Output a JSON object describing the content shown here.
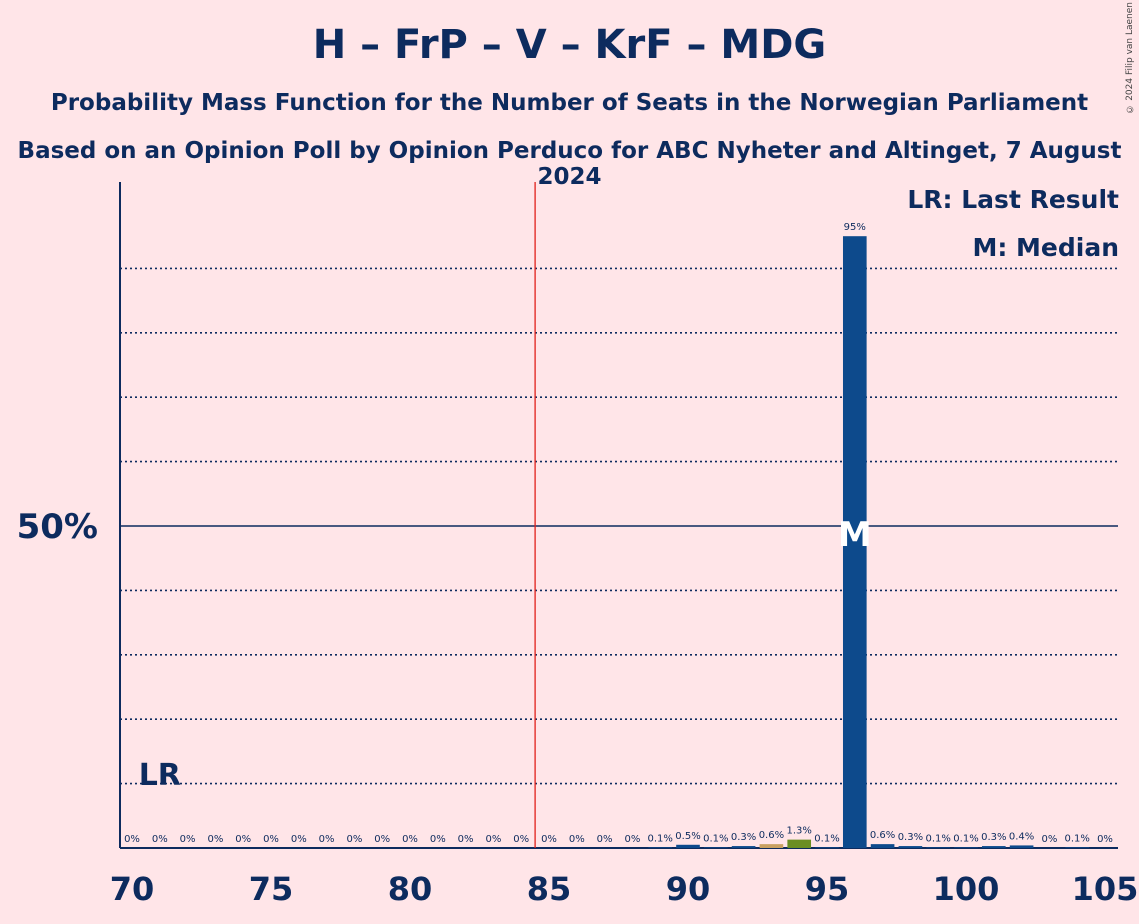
{
  "title": "H – FrP – V – KrF – MDG",
  "subtitle1": "Probability Mass Function for the Number of Seats in the Norwegian Parliament",
  "subtitle2": "Based on an Opinion Poll by Opinion Perduco for ABC Nyheter and Altinget, 7 August 2024",
  "copyright": "© 2024 Filip van Laenen",
  "legend": {
    "lr": "LR: Last Result",
    "m": "M: Median"
  },
  "colors": {
    "background": "#FFE5E8",
    "main_bar": "#0D4A8C",
    "olive_bar": "#6B8E23",
    "tan_bar": "#C8A060",
    "majority_line": "#E0201B",
    "text": "#0D2B5E"
  },
  "chart_data": {
    "type": "bar",
    "xlim": [
      70,
      105
    ],
    "ylim": [
      0,
      100
    ],
    "x_ticks": [
      "70",
      "75",
      "80",
      "85",
      "90",
      "95",
      "100",
      "105"
    ],
    "y_ticks": [
      "50%"
    ],
    "gridlines_pct": [
      10,
      20,
      30,
      40,
      60,
      70,
      80,
      90
    ],
    "majority_line_x": 85,
    "last_result_x": 71,
    "last_result_label": "LR",
    "median_x": 96,
    "median_label": "M",
    "x": [
      70,
      71,
      72,
      73,
      74,
      75,
      76,
      77,
      78,
      79,
      80,
      81,
      82,
      83,
      84,
      85,
      86,
      87,
      88,
      89,
      90,
      91,
      92,
      93,
      94,
      95,
      96,
      97,
      98,
      99,
      100,
      101,
      102,
      103,
      104,
      105
    ],
    "values": [
      0,
      0,
      0,
      0,
      0,
      0,
      0,
      0,
      0,
      0,
      0,
      0,
      0,
      0,
      0,
      0,
      0,
      0,
      0,
      0.1,
      0.5,
      0.1,
      0.3,
      0.6,
      1.3,
      0.1,
      95,
      0.6,
      0.3,
      0.1,
      0.1,
      0.3,
      0.4,
      0,
      0.1,
      0
    ],
    "labels": [
      "0%",
      "0%",
      "0%",
      "0%",
      "0%",
      "0%",
      "0%",
      "0%",
      "0%",
      "0%",
      "0%",
      "0%",
      "0%",
      "0%",
      "0%",
      "0%",
      "0%",
      "0%",
      "0%",
      "0.1%",
      "0.5%",
      "0.1%",
      "0.3%",
      "0.6%",
      "1.3%",
      "0.1%",
      "95%",
      "0.6%",
      "0.3%",
      "0.1%",
      "0.1%",
      "0.3%",
      "0.4%",
      "0%",
      "0.1%",
      "0%"
    ],
    "bar_colors": {
      "93": "tan",
      "94": "olive"
    }
  }
}
